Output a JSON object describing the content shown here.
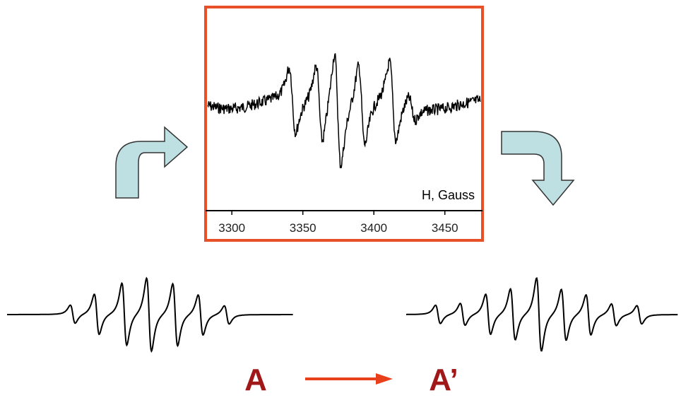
{
  "spectrum": {
    "x_label": "H, Gauss",
    "xlim": [
      3281.5,
      3476.5
    ],
    "xticks": [
      3300,
      3350,
      3400,
      3450
    ]
  },
  "labels": {
    "start": "A",
    "end": "A’"
  }
}
